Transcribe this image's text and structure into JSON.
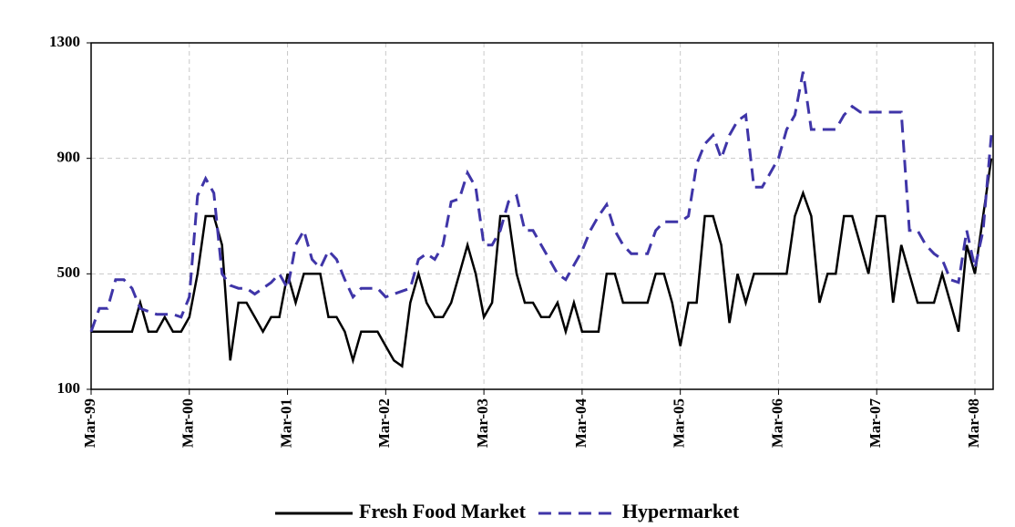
{
  "chart_data": {
    "type": "line",
    "categories": [
      "Mar-99",
      null,
      null,
      null,
      null,
      null,
      null,
      null,
      null,
      null,
      null,
      null,
      "Mar-00",
      null,
      null,
      null,
      null,
      null,
      null,
      null,
      null,
      null,
      null,
      null,
      "Mar-01",
      null,
      null,
      null,
      null,
      null,
      null,
      null,
      null,
      null,
      null,
      null,
      "Mar-02",
      null,
      null,
      null,
      null,
      null,
      null,
      null,
      null,
      null,
      null,
      null,
      "Mar-03",
      null,
      null,
      null,
      null,
      null,
      null,
      null,
      null,
      null,
      null,
      null,
      "Mar-04",
      null,
      null,
      null,
      null,
      null,
      null,
      null,
      null,
      null,
      null,
      null,
      "Mar-05",
      null,
      null,
      null,
      null,
      null,
      null,
      null,
      null,
      null,
      null,
      null,
      "Mar-06",
      null,
      null,
      null,
      null,
      null,
      null,
      null,
      null,
      null,
      null,
      null,
      "Mar-07",
      null,
      null,
      null,
      null,
      null,
      null,
      null,
      null,
      null,
      null,
      null,
      "Mar-08",
      null,
      null
    ],
    "series": [
      {
        "name": "Fresh Food Market",
        "color": "#000000",
        "dash": false,
        "values": [
          300,
          300,
          300,
          300,
          300,
          300,
          400,
          300,
          300,
          350,
          300,
          300,
          350,
          500,
          700,
          700,
          600,
          200,
          400,
          400,
          350,
          300,
          350,
          350,
          500,
          400,
          500,
          500,
          500,
          350,
          350,
          300,
          200,
          300,
          300,
          300,
          250,
          200,
          180,
          400,
          500,
          400,
          350,
          350,
          400,
          500,
          600,
          500,
          350,
          400,
          700,
          700,
          500,
          400,
          400,
          350,
          350,
          400,
          300,
          400,
          300,
          300,
          300,
          500,
          500,
          400,
          400,
          400,
          400,
          500,
          500,
          400,
          250,
          400,
          400,
          700,
          700,
          600,
          330,
          500,
          400,
          500,
          500,
          500,
          500,
          500,
          700,
          780,
          700,
          400,
          500,
          500,
          700,
          700,
          600,
          500,
          700,
          700,
          400,
          600,
          500,
          400,
          400,
          400,
          500,
          400,
          300,
          600,
          500,
          700,
          900
        ]
      },
      {
        "name": "Hypermarket",
        "color": "#3f35a8",
        "dash": true,
        "values": [
          300,
          380,
          380,
          480,
          480,
          450,
          380,
          370,
          360,
          360,
          360,
          350,
          420,
          770,
          830,
          780,
          500,
          460,
          450,
          450,
          430,
          450,
          470,
          500,
          450,
          600,
          650,
          550,
          520,
          580,
          550,
          480,
          420,
          450,
          450,
          450,
          420,
          430,
          440,
          450,
          550,
          570,
          550,
          600,
          750,
          760,
          850,
          800,
          600,
          600,
          650,
          750,
          770,
          650,
          650,
          600,
          550,
          500,
          480,
          530,
          580,
          650,
          700,
          740,
          650,
          600,
          570,
          570,
          570,
          650,
          680,
          680,
          680,
          700,
          880,
          950,
          980,
          900,
          980,
          1030,
          1050,
          800,
          800,
          850,
          900,
          1000,
          1050,
          1200,
          1000,
          1000,
          1000,
          1000,
          1050,
          1080,
          1060,
          1060,
          1060,
          1060,
          1060,
          1060,
          650,
          650,
          600,
          570,
          550,
          480,
          470,
          650,
          520,
          650,
          980
        ]
      }
    ],
    "ylim": [
      100,
      1300
    ],
    "yticks": [
      100,
      500,
      900,
      1300
    ],
    "grid": true,
    "legend": "bottom"
  }
}
